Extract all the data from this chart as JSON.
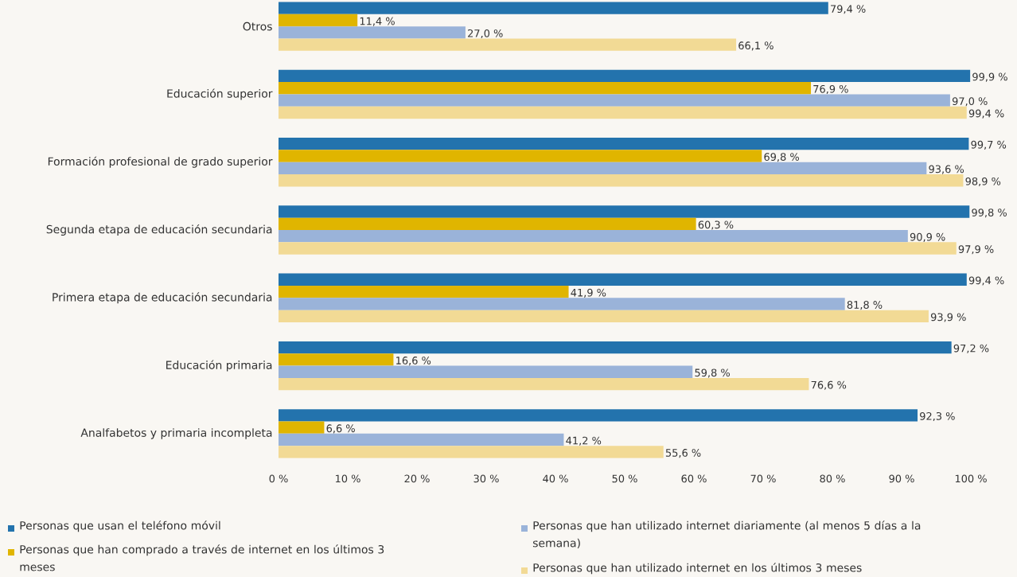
{
  "chart_data": {
    "type": "bar",
    "orientation": "horizontal",
    "legend": "bottom",
    "categories": [
      "Otros",
      "Educación superior",
      "Formación profesional de grado superior",
      "Segunda etapa de educación secundaria",
      "Primera etapa de educación secundaria",
      "Educación primaria",
      "Analfabetos y primaria incompleta"
    ],
    "xlim": [
      0,
      100
    ],
    "xticks": [
      {
        "value": 0,
        "label": "0 %"
      },
      {
        "value": 10,
        "label": "10 %"
      },
      {
        "value": 20,
        "label": "20 %"
      },
      {
        "value": 30,
        "label": "30 %"
      },
      {
        "value": 40,
        "label": "40 %"
      },
      {
        "value": 50,
        "label": "50 %"
      },
      {
        "value": 60,
        "label": "60 %"
      },
      {
        "value": 70,
        "label": "70 %"
      },
      {
        "value": 80,
        "label": "80 %"
      },
      {
        "value": 90,
        "label": "90 %"
      },
      {
        "value": 100,
        "label": "100 %"
      }
    ],
    "series": [
      {
        "name": "Personas que usan el teléfono móvil",
        "color": "#2373ad",
        "values": [
          79.4,
          99.9,
          99.7,
          99.8,
          99.4,
          97.2,
          92.3
        ],
        "value_labels": [
          "79,4 %",
          "99,9 %",
          "99,7 %",
          "99,8 %",
          "99,4 %",
          "97,2 %",
          "92,3 %"
        ]
      },
      {
        "name": "Personas que han comprado a través de internet en los últimos 3 meses",
        "color": "#e0b500",
        "values": [
          11.4,
          76.9,
          69.8,
          60.3,
          41.9,
          16.6,
          6.6
        ],
        "value_labels": [
          "11,4 %",
          "76,9 %",
          "69,8 %",
          "60,3 %",
          "41,9 %",
          "16,6 %",
          "6,6 %"
        ]
      },
      {
        "name": "Personas que han utilizado internet diariamente (al menos 5 días a la semana)",
        "color": "#9ab3d9",
        "values": [
          27.0,
          97.0,
          93.6,
          90.9,
          81.8,
          59.8,
          41.2
        ],
        "value_labels": [
          "27,0 %",
          "97,0 %",
          "93,6 %",
          "90,9 %",
          "81,8 %",
          "59,8 %",
          "41,2 %"
        ]
      },
      {
        "name": "Personas que han utilizado internet en los últimos 3 meses",
        "color": "#f2da95",
        "values": [
          66.1,
          99.4,
          98.9,
          97.9,
          93.9,
          76.6,
          55.6
        ],
        "value_labels": [
          "66,1 %",
          "99,4 %",
          "98,9 %",
          "97,9 %",
          "93,9 %",
          "76,6 %",
          "55,6 %"
        ]
      }
    ]
  }
}
